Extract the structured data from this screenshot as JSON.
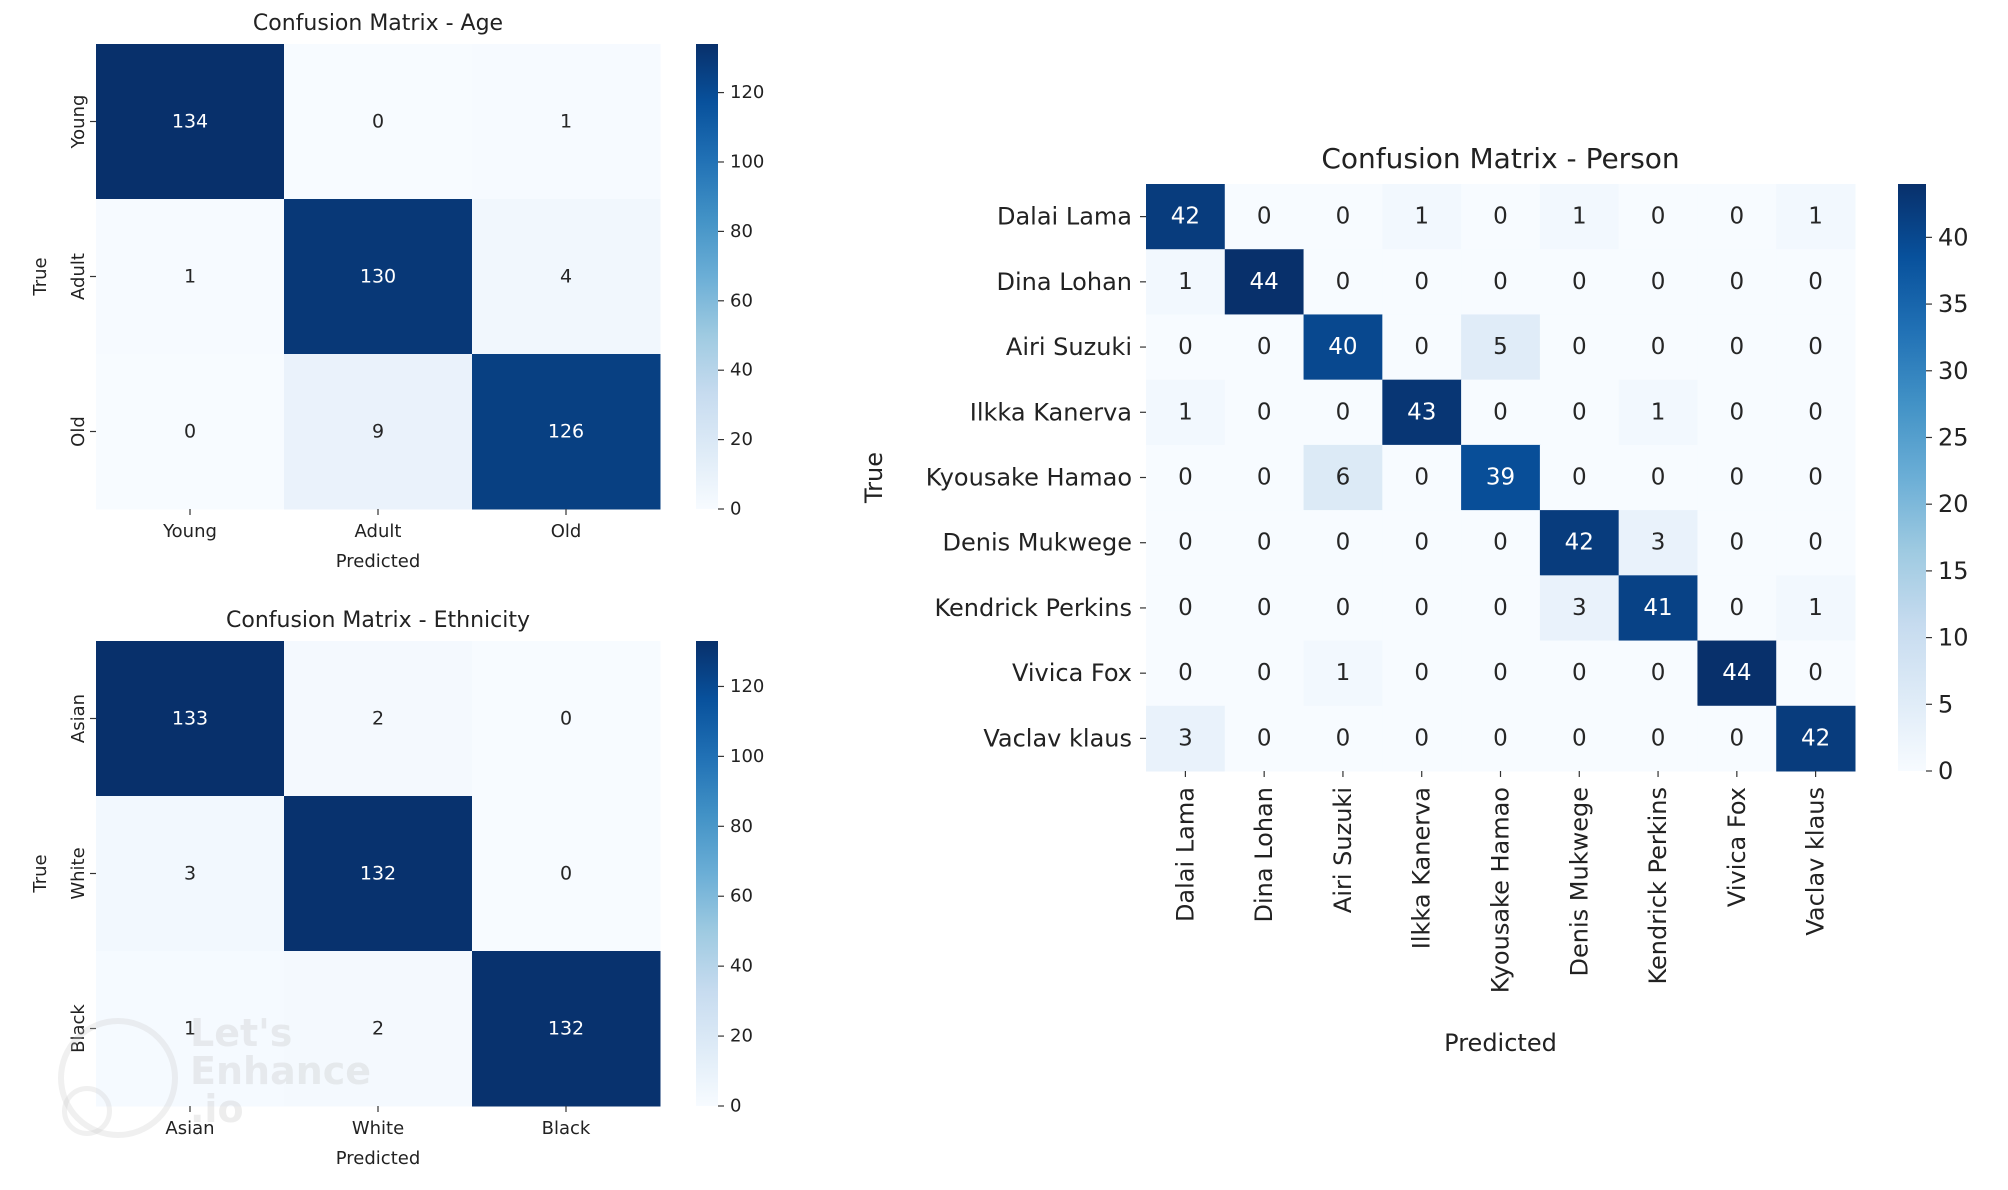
{
  "chart_data": [
    {
      "type": "heatmap",
      "title": "Confusion Matrix - Age",
      "xlabel": "Predicted",
      "ylabel": "True",
      "categories_x": [
        "Young",
        "Adult",
        "Old"
      ],
      "categories_y": [
        "Young",
        "Adult",
        "Old"
      ],
      "values": [
        [
          134,
          0,
          1
        ],
        [
          1,
          130,
          4
        ],
        [
          0,
          9,
          126
        ]
      ],
      "colorbar": {
        "range": [
          0,
          134
        ],
        "ticks": [
          0,
          20,
          40,
          60,
          80,
          100,
          120
        ]
      },
      "cmap": "Blues"
    },
    {
      "type": "heatmap",
      "title": "Confusion Matrix - Ethnicity",
      "xlabel": "Predicted",
      "ylabel": "True",
      "categories_x": [
        "Asian",
        "White",
        "Black"
      ],
      "categories_y": [
        "Asian",
        "White",
        "Black"
      ],
      "values": [
        [
          133,
          2,
          0
        ],
        [
          3,
          132,
          0
        ],
        [
          1,
          2,
          132
        ]
      ],
      "colorbar": {
        "range": [
          0,
          133
        ],
        "ticks": [
          0,
          20,
          40,
          60,
          80,
          100,
          120
        ]
      },
      "cmap": "Blues"
    },
    {
      "type": "heatmap",
      "title": "Confusion Matrix - Person",
      "xlabel": "Predicted",
      "ylabel": "True",
      "categories_x": [
        "Dalai Lama",
        "Dina Lohan",
        "Airi Suzuki",
        "Ilkka Kanerva",
        "Kyousake Hamao",
        "Denis Mukwege",
        "Kendrick Perkins",
        "Vivica Fox",
        "Vaclav klaus"
      ],
      "categories_y": [
        "Dalai Lama",
        "Dina Lohan",
        "Airi Suzuki",
        "Ilkka Kanerva",
        "Kyousake Hamao",
        "Denis Mukwege",
        "Kendrick Perkins",
        "Vivica Fox",
        "Vaclav klaus"
      ],
      "values": [
        [
          42,
          0,
          0,
          1,
          0,
          1,
          0,
          0,
          1
        ],
        [
          1,
          44,
          0,
          0,
          0,
          0,
          0,
          0,
          0
        ],
        [
          0,
          0,
          40,
          0,
          5,
          0,
          0,
          0,
          0
        ],
        [
          1,
          0,
          0,
          43,
          0,
          0,
          1,
          0,
          0
        ],
        [
          0,
          0,
          6,
          0,
          39,
          0,
          0,
          0,
          0
        ],
        [
          0,
          0,
          0,
          0,
          0,
          42,
          3,
          0,
          0
        ],
        [
          0,
          0,
          0,
          0,
          0,
          3,
          41,
          0,
          1
        ],
        [
          0,
          0,
          1,
          0,
          0,
          0,
          0,
          44,
          0
        ],
        [
          3,
          0,
          0,
          0,
          0,
          0,
          0,
          0,
          42
        ]
      ],
      "colorbar": {
        "range": [
          0,
          44
        ],
        "ticks": [
          0,
          5,
          10,
          15,
          20,
          25,
          30,
          35,
          40
        ]
      },
      "cmap": "Blues"
    }
  ],
  "watermark": {
    "lines": [
      "Let's",
      "Enhance",
      ".io"
    ]
  }
}
